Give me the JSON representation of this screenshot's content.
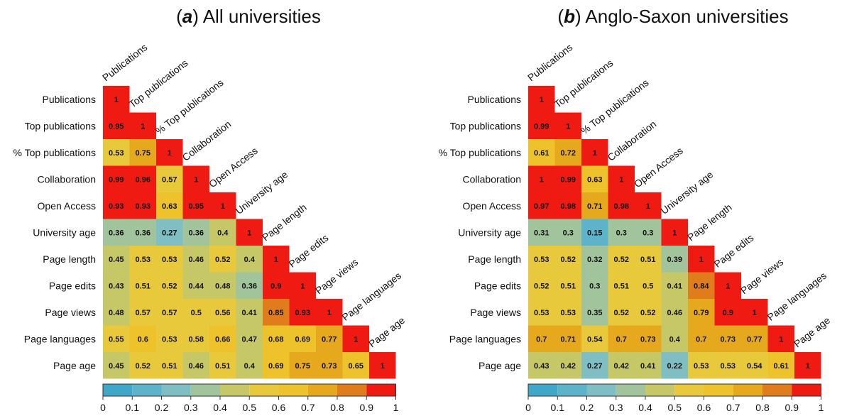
{
  "titles": {
    "a_letter": "a",
    "a_text": " All universities",
    "b_letter": "b",
    "b_text": " Anglo-Saxon universities"
  },
  "colorbar": {
    "ticks": [
      "0",
      "0.1",
      "0.2",
      "0.3",
      "0.4",
      "0.5",
      "0.6",
      "0.7",
      "0.8",
      "0.9",
      "1"
    ],
    "colors": [
      "#3fa7c7",
      "#5db3c9",
      "#7fbfc4",
      "#a2c49c",
      "#c6c767",
      "#e9c93c",
      "#eec22b",
      "#e6a91d",
      "#e07c1b",
      "#ef1a12"
    ]
  },
  "chart_data": [
    {
      "type": "heatmap",
      "title": "(a) All universities",
      "variables": [
        "Publications",
        "Top publications",
        "% Top publications",
        "Collaboration",
        "Open Access",
        "University age",
        "Page length",
        "Page edits",
        "Page views",
        "Page languages",
        "Page age"
      ],
      "matrix": [
        [
          1
        ],
        [
          0.95,
          1
        ],
        [
          0.53,
          0.75,
          1
        ],
        [
          0.99,
          0.96,
          0.57,
          1
        ],
        [
          0.93,
          0.93,
          0.63,
          0.95,
          1
        ],
        [
          0.36,
          0.36,
          0.27,
          0.36,
          0.4,
          1
        ],
        [
          0.45,
          0.53,
          0.53,
          0.46,
          0.52,
          0.4,
          1
        ],
        [
          0.43,
          0.51,
          0.52,
          0.44,
          0.48,
          0.36,
          0.9,
          1
        ],
        [
          0.48,
          0.57,
          0.57,
          0.5,
          0.56,
          0.41,
          0.85,
          0.93,
          1
        ],
        [
          0.55,
          0.6,
          0.53,
          0.58,
          0.66,
          0.47,
          0.68,
          0.69,
          0.77,
          1
        ],
        [
          0.45,
          0.52,
          0.51,
          0.46,
          0.51,
          0.4,
          0.69,
          0.75,
          0.73,
          0.65,
          1
        ]
      ],
      "color_range": [
        0,
        1
      ]
    },
    {
      "type": "heatmap",
      "title": "(b) Anglo-Saxon universities",
      "variables": [
        "Publications",
        "Top publications",
        "% Top publications",
        "Collaboration",
        "Open Access",
        "University age",
        "Page length",
        "Page edits",
        "Page views",
        "Page languages",
        "Page age"
      ],
      "matrix": [
        [
          1
        ],
        [
          0.99,
          1
        ],
        [
          0.61,
          0.72,
          1
        ],
        [
          1,
          0.99,
          0.63,
          1
        ],
        [
          0.97,
          0.98,
          0.71,
          0.98,
          1
        ],
        [
          0.31,
          0.3,
          0.15,
          0.3,
          0.3,
          1
        ],
        [
          0.53,
          0.52,
          0.32,
          0.52,
          0.51,
          0.39,
          1
        ],
        [
          0.52,
          0.51,
          0.3,
          0.51,
          0.5,
          0.41,
          0.84,
          1
        ],
        [
          0.53,
          0.53,
          0.35,
          0.52,
          0.52,
          0.46,
          0.79,
          0.9,
          1
        ],
        [
          0.7,
          0.71,
          0.54,
          0.7,
          0.73,
          0.4,
          0.7,
          0.73,
          0.77,
          1
        ],
        [
          0.43,
          0.42,
          0.27,
          0.42,
          0.41,
          0.22,
          0.53,
          0.53,
          0.54,
          0.61,
          1
        ]
      ],
      "color_range": [
        0,
        1
      ]
    }
  ]
}
